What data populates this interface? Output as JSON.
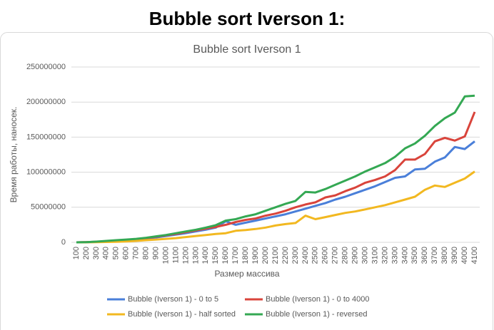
{
  "heading": "Bubble sort Iverson 1:",
  "chart_data": {
    "type": "line",
    "title": "Bubble sort Iverson 1",
    "x_label": "Размер массива",
    "y_label": "Время работы, наносек.",
    "categories": [
      "100",
      "200",
      "300",
      "400",
      "500",
      "600",
      "700",
      "800",
      "900",
      "1000",
      "1100",
      "1200",
      "1300",
      "1400",
      "1500",
      "1600",
      "1700",
      "1800",
      "1900",
      "2000",
      "2100",
      "2200",
      "2300",
      "2400",
      "2500",
      "2600",
      "2700",
      "2800",
      "2900",
      "3000",
      "3100",
      "3200",
      "3300",
      "3400",
      "3500",
      "3600",
      "3700",
      "3800",
      "3900",
      "4000",
      "4100"
    ],
    "ylim": [
      0,
      250000000
    ],
    "yticks": [
      0,
      50000000,
      100000000,
      150000000,
      200000000,
      250000000
    ],
    "grid": true,
    "legend": "bottom",
    "series": [
      {
        "name": "Bubble (Iverson 1) - 0 to 5",
        "color": "#4a7fd9",
        "values": [
          0,
          200000,
          500000,
          1000000,
          1800000,
          2800000,
          4000000,
          5500000,
          7000000,
          9000000,
          11000000,
          13000000,
          15500000,
          18000000,
          21000000,
          30000000,
          25000000,
          28000000,
          31000000,
          34000000,
          37000000,
          40000000,
          44000000,
          48000000,
          52000000,
          56000000,
          61000000,
          65000000,
          70000000,
          75000000,
          80000000,
          86000000,
          92000000,
          94000000,
          104000000,
          105000000,
          115000000,
          121000000,
          136000000,
          133000000,
          144000000
        ]
      },
      {
        "name": "Bubble (Iverson 1) - 0 to 4000",
        "color": "#d9443b",
        "values": [
          0,
          300000,
          700000,
          1200000,
          2000000,
          3000000,
          4500000,
          6000000,
          8000000,
          10000000,
          12000000,
          14500000,
          17000000,
          19500000,
          22000000,
          25000000,
          29000000,
          32000000,
          34000000,
          38000000,
          41000000,
          45000000,
          50000000,
          54000000,
          57000000,
          64000000,
          67000000,
          73000000,
          78000000,
          85000000,
          89000000,
          94000000,
          103000000,
          118000000,
          118000000,
          126000000,
          144000000,
          149000000,
          145000000,
          151000000,
          186000000
        ]
      },
      {
        "name": "Bubble (Iverson 1) - half sorted",
        "color": "#f2b820",
        "values": [
          0,
          100000,
          300000,
          500000,
          800000,
          1200000,
          2000000,
          3000000,
          4000000,
          5000000,
          6000000,
          7500000,
          9000000,
          10500000,
          12000000,
          13000000,
          16500000,
          17500000,
          19000000,
          21000000,
          24000000,
          26000000,
          27500000,
          38000000,
          33000000,
          36000000,
          39000000,
          42000000,
          44000000,
          47000000,
          50000000,
          53000000,
          57000000,
          61000000,
          65000000,
          75000000,
          81000000,
          79000000,
          85000000,
          91000000,
          101000000
        ]
      },
      {
        "name": "Bubble (Iverson 1) - reversed",
        "color": "#34a853",
        "values": [
          0,
          300000,
          1000000,
          2000000,
          3000000,
          4000000,
          5000000,
          6500000,
          8500000,
          10500000,
          13000000,
          15500000,
          18000000,
          21000000,
          24500000,
          31000000,
          33000000,
          37000000,
          40000000,
          45000000,
          50000000,
          55000000,
          59000000,
          72000000,
          71000000,
          76000000,
          82000000,
          88000000,
          94000000,
          101000000,
          107000000,
          113000000,
          122000000,
          134000000,
          141000000,
          152000000,
          166000000,
          177000000,
          185000000,
          208000000,
          209000000
        ]
      }
    ]
  }
}
